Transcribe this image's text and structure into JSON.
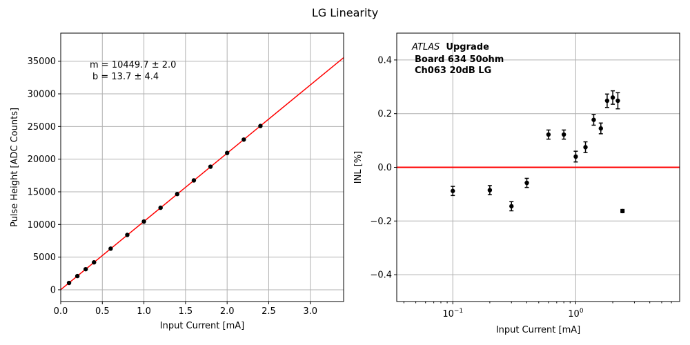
{
  "figure_title": "LG Linearity",
  "chart_data": [
    {
      "type": "scatter",
      "title": "",
      "xlabel": "Input Current [mA]",
      "ylabel": "Pulse Height [ADC Counts]",
      "xlim": [
        0,
        3.4
      ],
      "ylim": [
        -1800,
        39300
      ],
      "xticks": [
        0.0,
        0.5,
        1.0,
        1.5,
        2.0,
        2.5,
        3.0
      ],
      "xtick_labels": [
        "0.0",
        "0.5",
        "1.0",
        "1.5",
        "2.0",
        "2.5",
        "3.0"
      ],
      "yticks": [
        0,
        5000,
        10000,
        15000,
        20000,
        25000,
        30000,
        35000
      ],
      "ytick_labels": [
        "0",
        "5000",
        "10000",
        "15000",
        "20000",
        "25000",
        "30000",
        "35000"
      ],
      "grid": true,
      "annotation_lines": [
        "m = 10449.7 ± 2.0",
        "b = 13.7 ± 4.4"
      ],
      "points": {
        "x": [
          0.1,
          0.2,
          0.3,
          0.4,
          0.6,
          0.8,
          1.0,
          1.2,
          1.4,
          1.6,
          1.8,
          2.0,
          2.2,
          2.4
        ],
        "y": [
          1050,
          2100,
          3150,
          4200,
          6300,
          8400,
          10450,
          12560,
          14660,
          16750,
          18850,
          20950,
          23000,
          25080
        ]
      },
      "fit": {
        "slope": 10449.7,
        "intercept": 13.7
      },
      "colors": {
        "points": "#000000",
        "fit": "#ff0000",
        "grid": "#b0b0b0"
      }
    },
    {
      "type": "scatter",
      "title": "",
      "xlabel": "Input Current [mA]",
      "ylabel": "INL [%]",
      "xscale": "log",
      "xlim": [
        0.035,
        7.0
      ],
      "ylim": [
        -0.5,
        0.5
      ],
      "xticks": [
        0.1,
        1
      ],
      "yticks": [
        -0.4,
        -0.2,
        0.0,
        0.2,
        0.4
      ],
      "ytick_labels": [
        "−0.4",
        "−0.2",
        "0.0",
        "0.2",
        "0.4"
      ],
      "grid": true,
      "label_lines": [
        {
          "italic": "ATLAS",
          "bold": "Upgrade"
        },
        {
          "bold": "Board 634 50ohm"
        },
        {
          "bold": "Ch063 20dB LG"
        }
      ],
      "points": {
        "x": [
          0.1,
          0.2,
          0.3,
          0.4,
          0.6,
          0.8,
          1.0,
          1.2,
          1.4,
          1.6,
          1.8,
          2.0,
          2.2,
          2.4
        ],
        "y": [
          -0.088,
          -0.085,
          -0.145,
          -0.058,
          0.122,
          0.122,
          0.04,
          0.075,
          0.177,
          0.145,
          0.248,
          0.26,
          0.248,
          -0.163
        ],
        "err": [
          0.017,
          0.017,
          0.017,
          0.017,
          0.017,
          0.017,
          0.02,
          0.02,
          0.02,
          0.02,
          0.025,
          0.025,
          0.03,
          0.006
        ]
      },
      "reference_line_y": 0.0,
      "colors": {
        "points": "#000000",
        "reference": "#ff0000",
        "grid": "#b0b0b0"
      }
    }
  ]
}
